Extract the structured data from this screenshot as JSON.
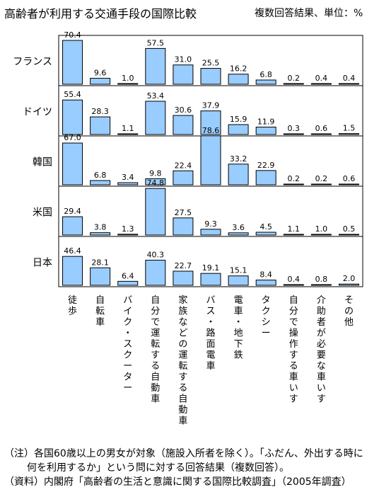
{
  "title": "高齢者が利用する交通手段の国際比較",
  "note": "複数回答結果、単位：%",
  "footnotes": [
    "（注）各国60歳以上の男女が対象（施設入所者を除く）。「ふだん、外出する時に",
    "何を利用するか」という問に対する回答結果（複数回答）。",
    "（資料）内閣府「高齢者の生活と意識に関する国際比較調査」（2005年調査）"
  ],
  "chart_data": {
    "type": "bar",
    "title": "高齢者が利用する交通手段の国際比較",
    "unit": "%",
    "categories": [
      "徒歩",
      "自転車",
      "バイク・スクーター",
      "自分で運転する自動車",
      "家族などの運転する自動車",
      "バス・路面電車",
      "電車・地下鉄",
      "タクシー",
      "自分で操作する車いす",
      "介助者が必要な車いす",
      "その他"
    ],
    "ylim": [
      0,
      100
    ],
    "grid": false,
    "series": [
      {
        "name": "フランス",
        "values": [
          70.4,
          9.6,
          1.0,
          57.5,
          31.0,
          25.5,
          16.2,
          6.8,
          0.2,
          0.4,
          0.4
        ]
      },
      {
        "name": "ドイツ",
        "values": [
          55.4,
          28.3,
          1.1,
          53.4,
          30.6,
          37.9,
          15.9,
          11.9,
          0.3,
          0.6,
          1.5
        ]
      },
      {
        "name": "韓国",
        "values": [
          67.0,
          6.8,
          3.4,
          9.8,
          22.4,
          78.6,
          33.2,
          22.9,
          0.2,
          0.2,
          0.6
        ]
      },
      {
        "name": "米国",
        "values": [
          29.4,
          3.8,
          1.3,
          74.8,
          27.5,
          9.3,
          3.6,
          4.5,
          1.1,
          1.0,
          0.5
        ]
      },
      {
        "name": "日本",
        "values": [
          46.4,
          28.1,
          6.4,
          40.3,
          22.7,
          19.1,
          15.1,
          8.4,
          0.4,
          0.8,
          2.0
        ]
      }
    ],
    "colors": {
      "bar_fill": "#99ccff",
      "bar_stroke": "#000000",
      "frame": "#000000"
    }
  }
}
